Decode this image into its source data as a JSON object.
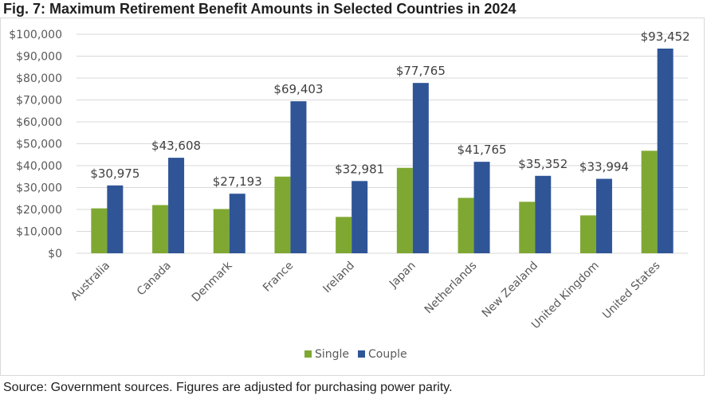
{
  "title": "Fig. 7: Maximum Retirement Benefit Amounts in Selected Countries in 2024",
  "source": "Source: Government sources. Figures are adjusted for purchasing power parity.",
  "colors": {
    "single": "#7fa832",
    "couple": "#2f5597",
    "grid": "#d9d9d9",
    "text": "#595959"
  },
  "chart_data": {
    "type": "bar",
    "title": "Fig. 7: Maximum Retirement Benefit Amounts in Selected Countries in 2024",
    "xlabel": "",
    "ylabel": "",
    "ylim": [
      0,
      100000
    ],
    "ytick_step": 10000,
    "ytick_labels": [
      "$0",
      "$10,000",
      "$20,000",
      "$30,000",
      "$40,000",
      "$50,000",
      "$60,000",
      "$70,000",
      "$80,000",
      "$90,000",
      "$100,000"
    ],
    "categories": [
      "Australia",
      "Canada",
      "Denmark",
      "France",
      "Ireland",
      "Japan",
      "Netherlands",
      "New Zealand",
      "United Kingdom",
      "United States"
    ],
    "series": [
      {
        "name": "Single",
        "values": [
          20500,
          22000,
          20200,
          35000,
          16600,
          39000,
          25300,
          23500,
          17300,
          46800
        ]
      },
      {
        "name": "Couple",
        "values": [
          30975,
          43608,
          27193,
          69403,
          32981,
          77765,
          41765,
          35352,
          33994,
          93452
        ]
      }
    ],
    "data_labels": {
      "series": "Couple",
      "texts": [
        "$30,975",
        "$43,608",
        "$27,193",
        "$69,403",
        "$32,981",
        "$77,765",
        "$41,765",
        "$35,352",
        "$33,994",
        "$93,452"
      ]
    },
    "legend": {
      "placement": "bottom-center",
      "entries": [
        "Single",
        "Couple"
      ]
    },
    "grid": true
  }
}
